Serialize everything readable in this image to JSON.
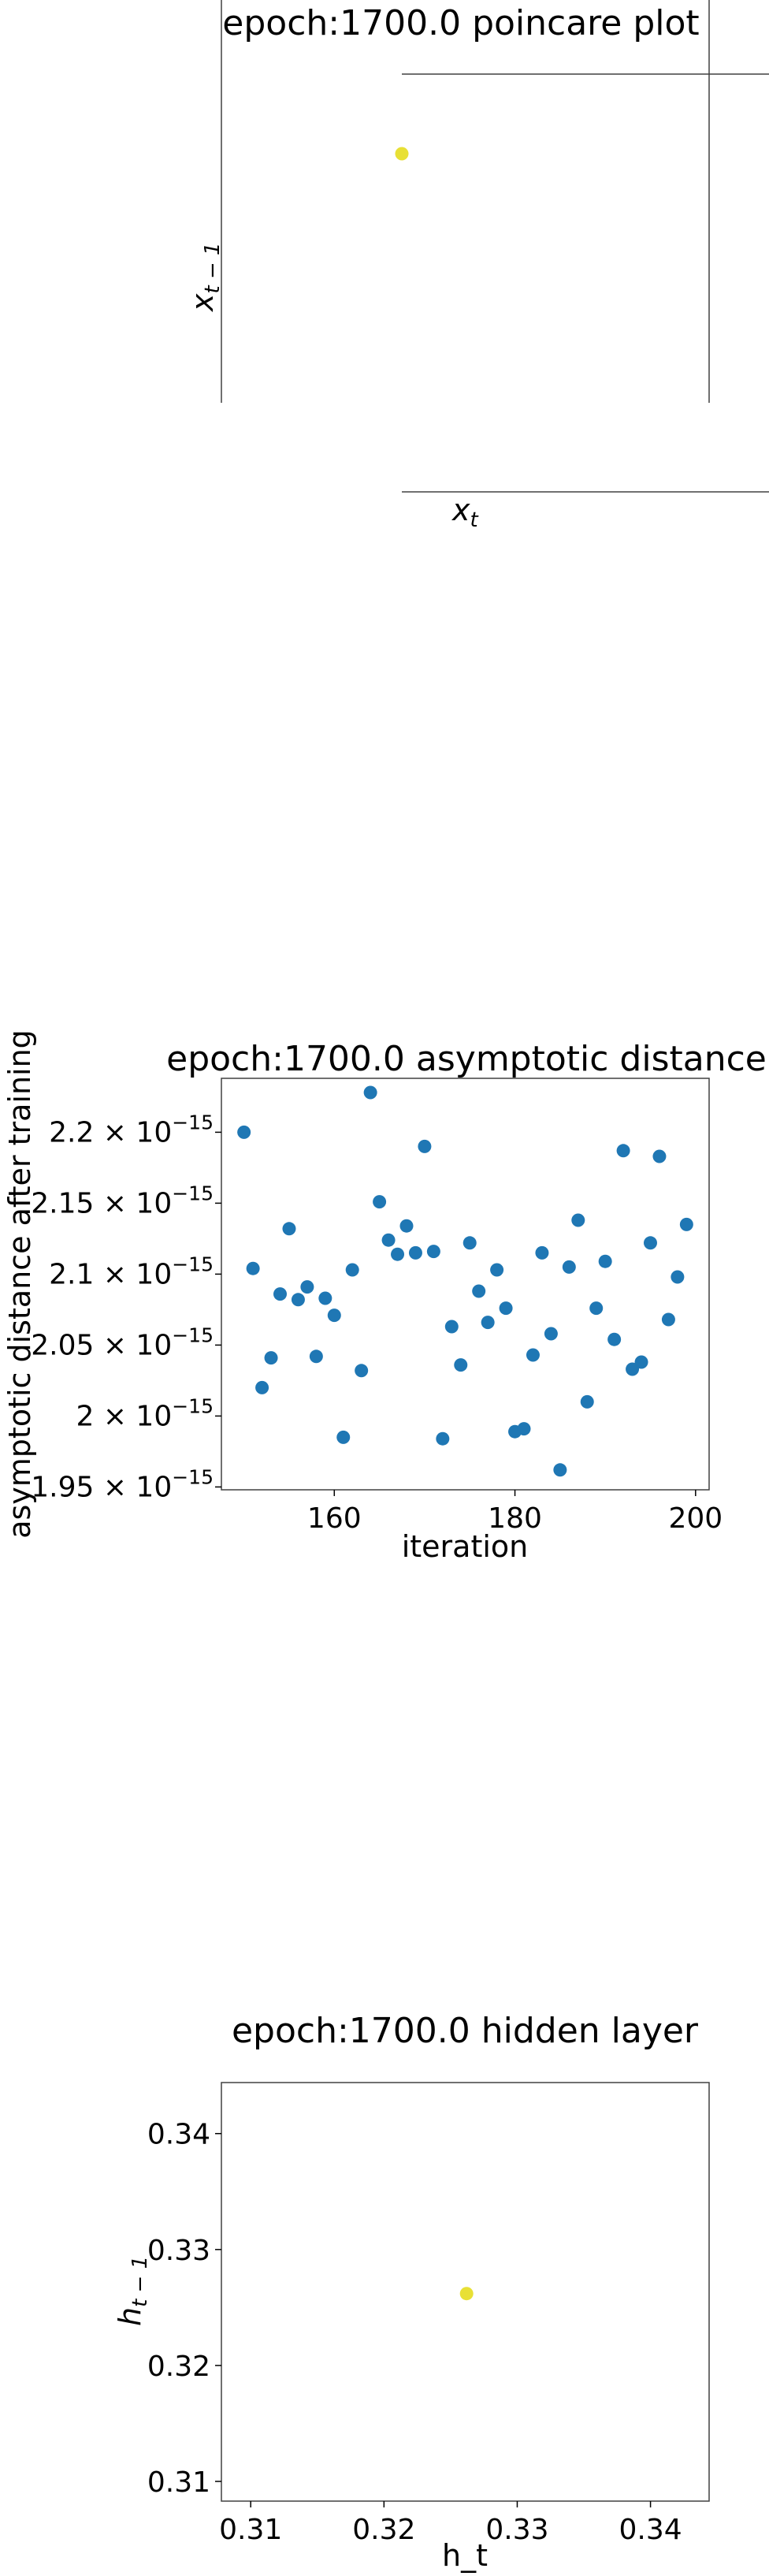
{
  "chart_data": [
    {
      "type": "scatter",
      "title": "epoch:1700.0 poincare plot",
      "xlabel": "x_t",
      "ylabel": "x_{t-1}",
      "series": [
        {
          "points": [
            [
              0.326,
              0.326
            ]
          ],
          "color": "#e8e035"
        }
      ]
    },
    {
      "type": "scatter",
      "title": "epoch:1700.0 asymptotic distance",
      "xlabel": "iteration",
      "ylabel": "asymptotic distance after training",
      "xlim": [
        147.5,
        201.5
      ],
      "ylim": [
        1.948,
        2.238
      ],
      "x_ticks": [
        160,
        180,
        200
      ],
      "y_ticks": [
        {
          "value": 1.95,
          "mantissa": "1.95"
        },
        {
          "value": 2.0,
          "mantissa": "2"
        },
        {
          "value": 2.05,
          "mantissa": "2.05"
        },
        {
          "value": 2.1,
          "mantissa": "2.1"
        },
        {
          "value": 2.15,
          "mantissa": "2.15"
        },
        {
          "value": 2.2,
          "mantissa": "2.2"
        }
      ],
      "y_tick_multiplier": "× 10",
      "y_tick_exponent": "−15",
      "y_scale": "1e-15",
      "series": [
        {
          "color": "#1f77b4",
          "x": [
            150,
            151,
            152,
            153,
            154,
            155,
            156,
            157,
            158,
            159,
            160,
            161,
            162,
            163,
            164,
            165,
            166,
            167,
            168,
            169,
            170,
            171,
            172,
            173,
            174,
            175,
            176,
            177,
            178,
            179,
            180,
            181,
            182,
            183,
            184,
            185,
            186,
            187,
            188,
            189,
            190,
            191,
            192,
            193,
            194,
            195,
            196,
            197,
            198,
            199
          ],
          "y": [
            2.2,
            2.104,
            2.02,
            2.041,
            2.086,
            2.132,
            2.082,
            2.091,
            2.042,
            2.083,
            2.071,
            1.985,
            2.103,
            2.032,
            2.228,
            2.151,
            2.124,
            2.114,
            2.134,
            2.115,
            2.19,
            2.116,
            1.984,
            2.063,
            2.036,
            2.122,
            2.088,
            2.066,
            2.103,
            2.076,
            1.989,
            1.991,
            2.043,
            2.115,
            2.058,
            1.962,
            2.105,
            2.138,
            2.01,
            2.076,
            2.109,
            2.054,
            2.187,
            2.033,
            2.038,
            2.122,
            2.183,
            2.068,
            2.098,
            2.135
          ]
        }
      ]
    },
    {
      "type": "scatter",
      "title": "epoch:1700.0 hidden layer",
      "xlabel": "h_t",
      "ylabel": "h_{t-1}",
      "xlim": [
        0.3078,
        0.3444
      ],
      "ylim": [
        0.3083,
        0.3444
      ],
      "x_ticks": [
        {
          "value": 0.31,
          "label": "0.31"
        },
        {
          "value": 0.32,
          "label": "0.32"
        },
        {
          "value": 0.33,
          "label": "0.33"
        },
        {
          "value": 0.34,
          "label": "0.34"
        }
      ],
      "y_ticks": [
        {
          "value": 0.31,
          "label": "0.31"
        },
        {
          "value": 0.32,
          "label": "0.32"
        },
        {
          "value": 0.33,
          "label": "0.33"
        },
        {
          "value": 0.34,
          "label": "0.34"
        }
      ],
      "series": [
        {
          "points": [
            [
              0.3262,
              0.3262
            ]
          ],
          "color": "#e8e035"
        }
      ]
    }
  ]
}
